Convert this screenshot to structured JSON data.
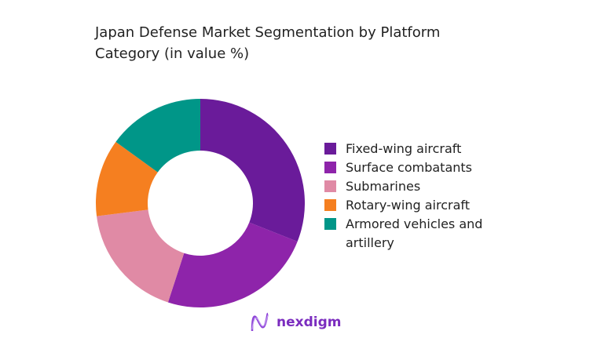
{
  "chart_data": {
    "type": "pie",
    "variant": "donut",
    "title": "Japan Defense Market Segmentation by Platform Category (in value %)",
    "categories": [
      "Fixed-wing aircraft",
      "Surface combatants",
      "Submarines",
      "Rotary-wing aircraft",
      "Armored vehicles and artillery"
    ],
    "values": [
      31,
      24,
      18,
      12,
      15
    ],
    "colors": [
      "#6a1b9a",
      "#8e24aa",
      "#e08aa5",
      "#f57f20",
      "#009688"
    ],
    "legend_position": "right"
  },
  "logo": {
    "text": "nexdigm",
    "color": "#7b2cbf"
  }
}
